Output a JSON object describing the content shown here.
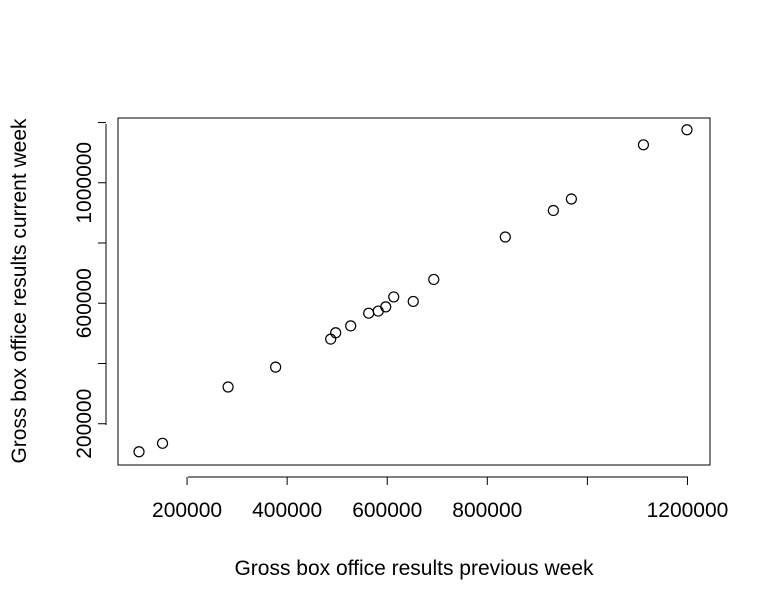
{
  "chart_data": {
    "type": "scatter",
    "title": "",
    "xlabel": "Gross box office results previous week",
    "ylabel": "Gross box office results current week",
    "xlim": [
      62000,
      1245000
    ],
    "ylim": [
      63000,
      1215000
    ],
    "x_ticks": [
      {
        "value": 200000,
        "label": "200000"
      },
      {
        "value": 400000,
        "label": "400000"
      },
      {
        "value": 600000,
        "label": "600000"
      },
      {
        "value": 800000,
        "label": "800000"
      },
      {
        "value": 1000000,
        "label": ""
      },
      {
        "value": 1200000,
        "label": "1200000"
      }
    ],
    "y_ticks": [
      {
        "value": 200000,
        "label": "200000"
      },
      {
        "value": 400000,
        "label": ""
      },
      {
        "value": 600000,
        "label": "600000"
      },
      {
        "value": 800000,
        "label": ""
      },
      {
        "value": 1000000,
        "label": "1000000"
      },
      {
        "value": 1200000,
        "label": ""
      }
    ],
    "grid": false,
    "points": [
      {
        "x": 104000,
        "y": 107000
      },
      {
        "x": 151000,
        "y": 135000
      },
      {
        "x": 282000,
        "y": 322000
      },
      {
        "x": 377000,
        "y": 388000
      },
      {
        "x": 487000,
        "y": 481000
      },
      {
        "x": 497000,
        "y": 502000
      },
      {
        "x": 527000,
        "y": 525000
      },
      {
        "x": 563000,
        "y": 567000
      },
      {
        "x": 582000,
        "y": 574000
      },
      {
        "x": 597000,
        "y": 588000
      },
      {
        "x": 613000,
        "y": 621000
      },
      {
        "x": 652000,
        "y": 606000
      },
      {
        "x": 693000,
        "y": 679000
      },
      {
        "x": 836000,
        "y": 820000
      },
      {
        "x": 932000,
        "y": 908000
      },
      {
        "x": 968000,
        "y": 946000
      },
      {
        "x": 1112000,
        "y": 1126000
      },
      {
        "x": 1199000,
        "y": 1176000
      }
    ]
  }
}
